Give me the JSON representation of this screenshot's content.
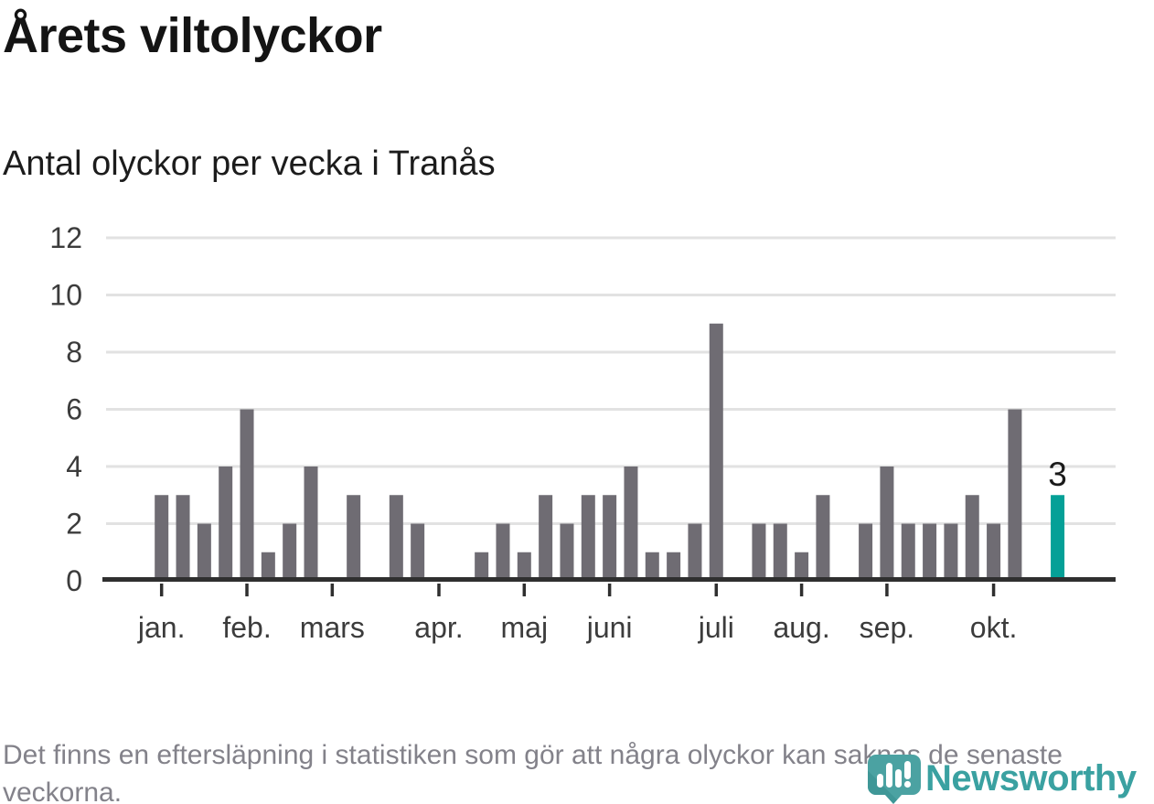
{
  "header": {
    "title": "Årets viltolyckor",
    "subtitle": "Antal olyckor per vecka i Tranås"
  },
  "chart_data": {
    "type": "bar",
    "title": "Årets viltolyckor",
    "subtitle": "Antal olyckor per vecka i Tranås",
    "x_unit": "vecka",
    "num_weeks": 43,
    "values": [
      3,
      3,
      2,
      4,
      6,
      1,
      2,
      4,
      0,
      3,
      0,
      3,
      2,
      0,
      0,
      1,
      2,
      1,
      3,
      2,
      3,
      3,
      4,
      1,
      1,
      2,
      9,
      0,
      2,
      2,
      1,
      3,
      0,
      2,
      4,
      2,
      2,
      2,
      3,
      2,
      6,
      0,
      3
    ],
    "highlight_week": 43,
    "highlight_value": 3,
    "highlight_label": "3",
    "month_ticks": [
      {
        "label": "jan.",
        "week": 1
      },
      {
        "label": "feb.",
        "week": 5
      },
      {
        "label": "mars",
        "week": 9
      },
      {
        "label": "apr.",
        "week": 14
      },
      {
        "label": "maj",
        "week": 18
      },
      {
        "label": "juni",
        "week": 22
      },
      {
        "label": "juli",
        "week": 27
      },
      {
        "label": "aug.",
        "week": 31
      },
      {
        "label": "sep.",
        "week": 35
      },
      {
        "label": "okt.",
        "week": 40
      }
    ],
    "yticks": [
      0,
      2,
      4,
      6,
      8,
      10,
      12
    ],
    "ylim": [
      0,
      12
    ],
    "grid": true,
    "legend": "none",
    "bar_color": "#6F6C73",
    "highlight_color": "#05A097",
    "gridline_color": "#E2E2E2",
    "axis_color": "#2F2F2F",
    "tick_label_color": "#3C3C3C",
    "value_label_color": "#1A1A1A"
  },
  "footer": {
    "note": "Det finns en eftersläpning i statistiken som gör att några olyckor kan saknas de senaste veckorna."
  },
  "logo": {
    "wordmark": "Newsworthy",
    "mark_color": "#4BA2A2",
    "mark_dark_color": "#2F8C8C",
    "word_color": "#3AA1A1"
  }
}
